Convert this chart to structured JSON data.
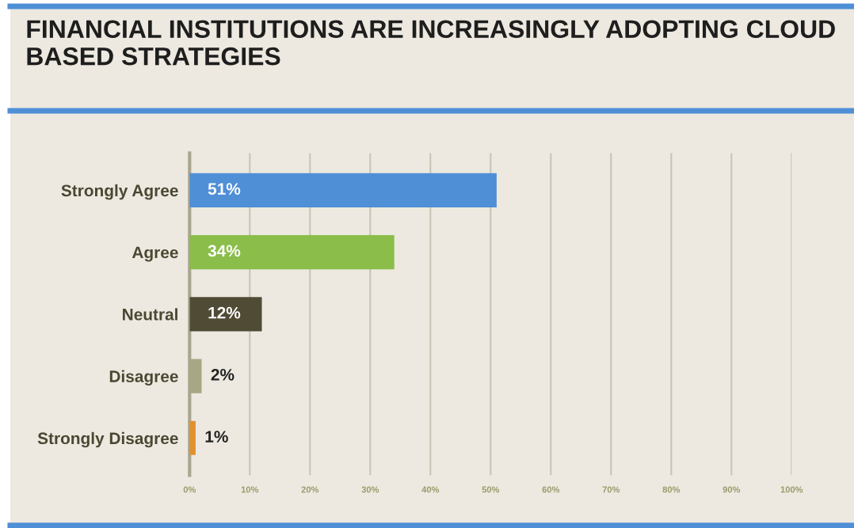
{
  "chart_data": {
    "type": "bar",
    "orientation": "horizontal",
    "title": "FINANCIAL INSTITUTIONS ARE INCREASINGLY ADOPTING CLOUD BASED STRATEGIES",
    "categories": [
      "Strongly Agree",
      "Agree",
      "Neutral",
      "Disagree",
      "Strongly Disagree"
    ],
    "values": [
      51,
      34,
      12,
      2,
      1
    ],
    "colors": [
      "#4f8fd6",
      "#8bbd4a",
      "#4f4b35",
      "#a8a783",
      "#e0922f"
    ],
    "value_labels": [
      "51%",
      "34%",
      "12%",
      "2%",
      "1%"
    ],
    "xlim": [
      0,
      100
    ],
    "xticks": [
      {
        "value": 0,
        "label": "0%"
      },
      {
        "value": 10,
        "label": "10%"
      },
      {
        "value": 20,
        "label": "20%"
      },
      {
        "value": 30,
        "label": "30%"
      },
      {
        "value": 40,
        "label": "40%"
      },
      {
        "value": 50,
        "label": "50%"
      },
      {
        "value": 60,
        "label": "60%"
      },
      {
        "value": 70,
        "label": "70%"
      },
      {
        "value": 80,
        "label": "80%"
      },
      {
        "value": 90,
        "label": "90%"
      },
      {
        "value": 100,
        "label": "100%"
      }
    ],
    "grid": "x"
  }
}
